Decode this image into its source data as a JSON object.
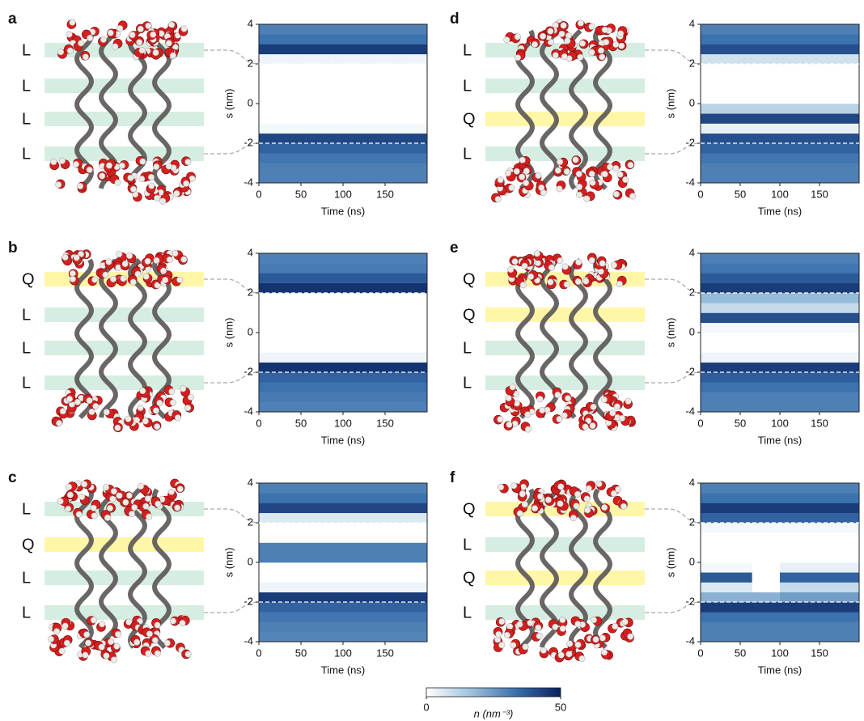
{
  "chart_data": [
    {
      "type": "heatmap",
      "panel": "a",
      "layers": [
        "L",
        "L",
        "L",
        "L"
      ],
      "xlabel": "Time (ns)",
      "ylabel": "s (nm)",
      "xlim": [
        0,
        200
      ],
      "xticks": [
        0,
        50,
        100,
        150
      ],
      "ylim": [
        -4,
        4
      ],
      "yticks": [
        -4,
        -2,
        0,
        2,
        4
      ],
      "hlines": [
        2,
        -2
      ],
      "x_bins": [
        0,
        200
      ],
      "y_bins": [
        -4,
        -3.5,
        -3,
        -2.5,
        -2,
        -1.5,
        -1,
        -0.5,
        0,
        0.5,
        1,
        1.5,
        2,
        2.5,
        3,
        3.5,
        4
      ],
      "values": [
        [
          30
        ],
        [
          30
        ],
        [
          32
        ],
        [
          36
        ],
        [
          42
        ],
        [
          2
        ],
        [
          0
        ],
        [
          0
        ],
        [
          0
        ],
        [
          0
        ],
        [
          0
        ],
        [
          0
        ],
        [
          3
        ],
        [
          44
        ],
        [
          33
        ],
        [
          30
        ]
      ]
    },
    {
      "type": "heatmap",
      "panel": "b",
      "layers": [
        "Q",
        "L",
        "L",
        "L"
      ],
      "xlabel": "Time (ns)",
      "ylabel": "s (nm)",
      "xlim": [
        0,
        200
      ],
      "xticks": [
        0,
        50,
        100,
        150
      ],
      "ylim": [
        -4,
        4
      ],
      "yticks": [
        -4,
        -2,
        0,
        2,
        4
      ],
      "hlines": [
        2,
        -2
      ],
      "x_bins": [
        0,
        200
      ],
      "y_bins": [
        -4,
        -3.5,
        -3,
        -2.5,
        -2,
        -1.5,
        -1,
        -0.5,
        0,
        0.5,
        1,
        1.5,
        2,
        2.5,
        3,
        3.5,
        4
      ],
      "values": [
        [
          30
        ],
        [
          31
        ],
        [
          33
        ],
        [
          36
        ],
        [
          46
        ],
        [
          3
        ],
        [
          0
        ],
        [
          0
        ],
        [
          0
        ],
        [
          0
        ],
        [
          0
        ],
        [
          0
        ],
        [
          46
        ],
        [
          38
        ],
        [
          31
        ],
        [
          30
        ]
      ]
    },
    {
      "type": "heatmap",
      "panel": "c",
      "layers": [
        "L",
        "Q",
        "L",
        "L"
      ],
      "xlabel": "Time (ns)",
      "ylabel": "s (nm)",
      "xlim": [
        0,
        200
      ],
      "xticks": [
        0,
        50,
        100,
        150
      ],
      "ylim": [
        -4,
        4
      ],
      "yticks": [
        -4,
        -2,
        0,
        2,
        4
      ],
      "hlines": [
        2,
        -2
      ],
      "x_bins": [
        0,
        200
      ],
      "y_bins": [
        -4,
        -3.5,
        -3,
        -2.5,
        -2,
        -1.5,
        -1,
        -0.5,
        0,
        0.5,
        1,
        1.5,
        2,
        2.5,
        3,
        3.5,
        4
      ],
      "values": [
        [
          29
        ],
        [
          30
        ],
        [
          32
        ],
        [
          36
        ],
        [
          44
        ],
        [
          3
        ],
        [
          0
        ],
        [
          0
        ],
        [
          30
        ],
        [
          30
        ],
        [
          0
        ],
        [
          0
        ],
        [
          6
        ],
        [
          42
        ],
        [
          33
        ],
        [
          30
        ]
      ]
    },
    {
      "type": "heatmap",
      "panel": "d",
      "layers": [
        "L",
        "L",
        "Q",
        "L"
      ],
      "xlabel": "Time (ns)",
      "ylabel": "s (nm)",
      "xlim": [
        0,
        200
      ],
      "xticks": [
        0,
        50,
        100,
        150
      ],
      "ylim": [
        -4,
        4
      ],
      "yticks": [
        -4,
        -2,
        0,
        2,
        4
      ],
      "hlines": [
        2,
        -2
      ],
      "x_bins": [
        0,
        200
      ],
      "y_bins": [
        -4,
        -3.5,
        -3,
        -2.5,
        -2,
        -1.5,
        -1,
        -0.5,
        0,
        0.5,
        1,
        1.5,
        2,
        2.5,
        3,
        3.5,
        4
      ],
      "values": [
        [
          30
        ],
        [
          30
        ],
        [
          32
        ],
        [
          36
        ],
        [
          40
        ],
        [
          4
        ],
        [
          42
        ],
        [
          12
        ],
        [
          0
        ],
        [
          0
        ],
        [
          0
        ],
        [
          0
        ],
        [
          8
        ],
        [
          40
        ],
        [
          33
        ],
        [
          30
        ]
      ]
    },
    {
      "type": "heatmap",
      "panel": "e",
      "layers": [
        "Q",
        "Q",
        "L",
        "L"
      ],
      "xlabel": "Time (ns)",
      "ylabel": "s (nm)",
      "xlim": [
        0,
        200
      ],
      "xticks": [
        0,
        50,
        100,
        150
      ],
      "ylim": [
        -4,
        4
      ],
      "yticks": [
        -4,
        -2,
        0,
        2,
        4
      ],
      "hlines": [
        2,
        -2
      ],
      "x_bins": [
        0,
        200
      ],
      "y_bins": [
        -4,
        -3.5,
        -3,
        -2.5,
        -2,
        -1.5,
        -1,
        -0.5,
        0,
        0.5,
        1,
        1.5,
        2,
        2.5,
        3,
        3.5,
        4
      ],
      "values": [
        [
          30
        ],
        [
          30
        ],
        [
          33
        ],
        [
          37
        ],
        [
          44
        ],
        [
          3
        ],
        [
          0
        ],
        [
          0
        ],
        [
          2
        ],
        [
          40
        ],
        [
          10
        ],
        [
          18
        ],
        [
          44
        ],
        [
          38
        ],
        [
          32
        ],
        [
          30
        ]
      ]
    },
    {
      "type": "heatmap",
      "panel": "f",
      "layers": [
        "Q",
        "L",
        "Q",
        "L"
      ],
      "xlabel": "Time (ns)",
      "ylabel": "s (nm)",
      "xlim": [
        0,
        200
      ],
      "xticks": [
        0,
        50,
        100,
        150
      ],
      "ylim": [
        -4,
        4
      ],
      "yticks": [
        -4,
        -2,
        0,
        2,
        4
      ],
      "hlines": [
        2,
        -2
      ],
      "x_bins": [
        0,
        65,
        100,
        200
      ],
      "y_bins": [
        -4,
        -3.5,
        -3,
        -2.5,
        -2,
        -1.5,
        -1,
        -0.5,
        0,
        0.5,
        1,
        1.5,
        2,
        2.5,
        3,
        3.5,
        4
      ],
      "values": [
        [
          30,
          30,
          30
        ],
        [
          30,
          30,
          30
        ],
        [
          33,
          33,
          33
        ],
        [
          44,
          44,
          44
        ],
        [
          20,
          20,
          24
        ],
        [
          6,
          0,
          10
        ],
        [
          38,
          0,
          36
        ],
        [
          2,
          0,
          4
        ],
        [
          0,
          0,
          0
        ],
        [
          0,
          0,
          0
        ],
        [
          0,
          0,
          0
        ],
        [
          2,
          2,
          2
        ],
        [
          36,
          36,
          36
        ],
        [
          44,
          44,
          44
        ],
        [
          33,
          33,
          33
        ],
        [
          30,
          30,
          30
        ]
      ]
    }
  ],
  "colorbar": {
    "lim": [
      0,
      50
    ],
    "ticks": [
      0,
      50
    ],
    "label": "n (nm⁻³)",
    "colors": [
      "#ffffff",
      "#9ec1dc",
      "#3a70ad",
      "#08205e"
    ]
  },
  "layer_colors": {
    "L": "#d5eee1",
    "Q": "#fff6a8"
  }
}
